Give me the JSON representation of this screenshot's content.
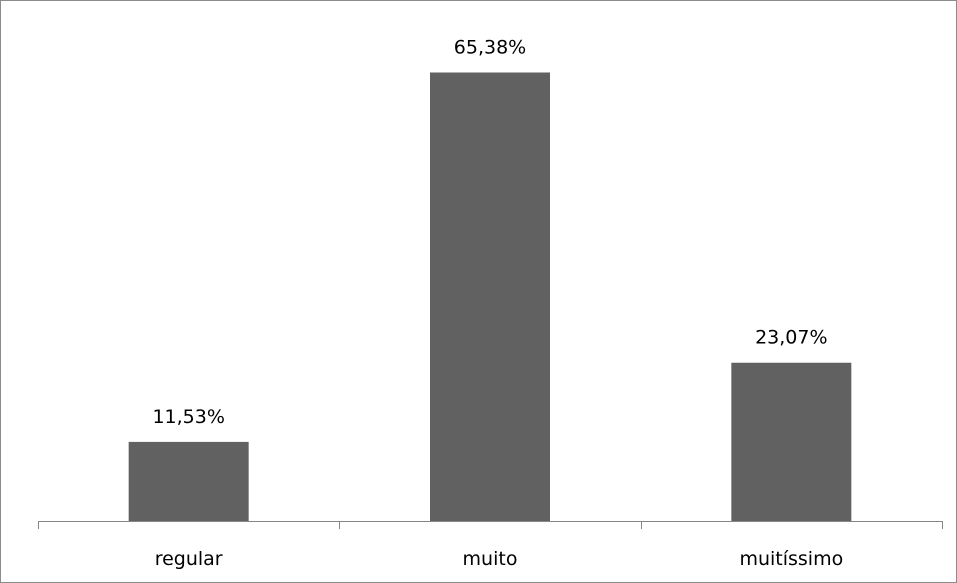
{
  "chart_data": {
    "type": "bar",
    "categories": [
      "regular",
      "muito",
      "muitíssimo"
    ],
    "values": [
      11.53,
      65.38,
      23.07
    ],
    "data_labels": [
      "11,53%",
      "65,38%",
      "23,07%"
    ],
    "title": "",
    "xlabel": "",
    "ylabel": "",
    "ylim": [
      0,
      70
    ],
    "grid": false,
    "legend": "none",
    "bar_color": "#616161"
  }
}
